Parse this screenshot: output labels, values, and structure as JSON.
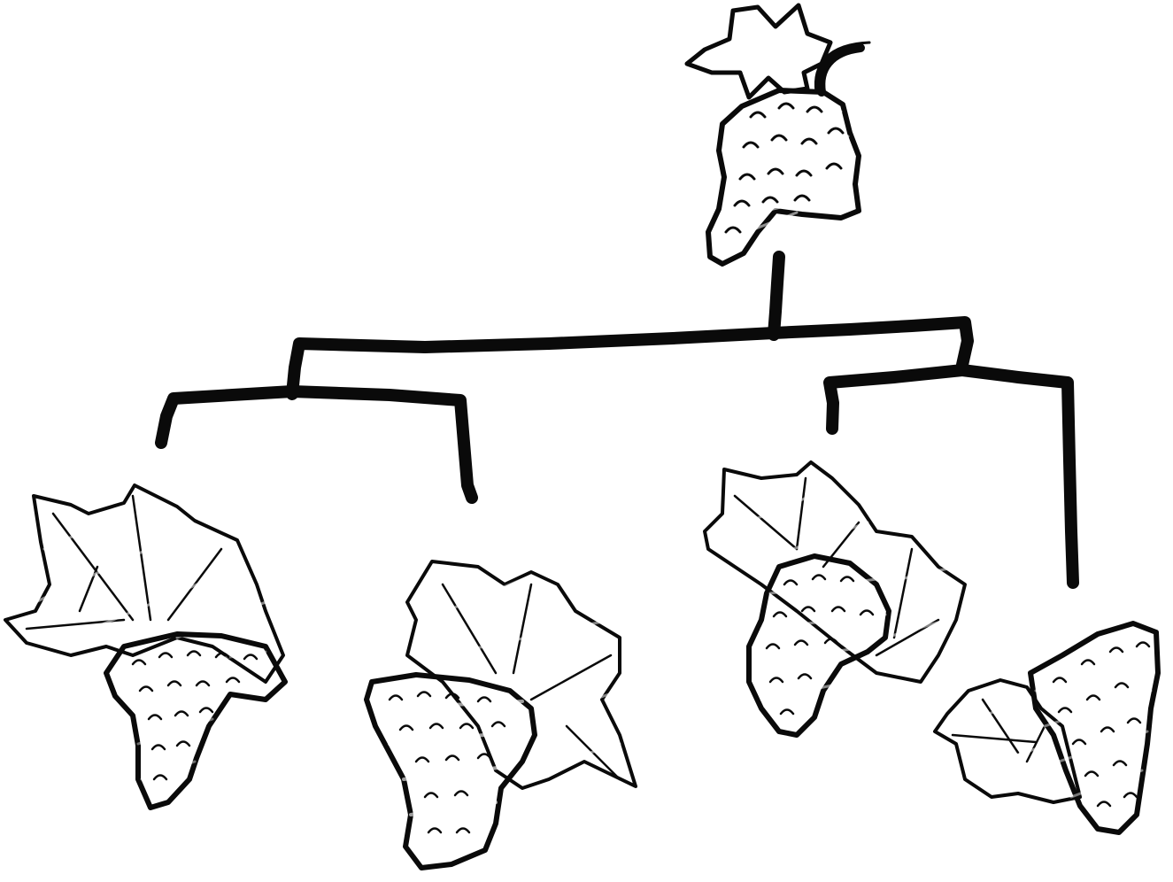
{
  "diagram": {
    "kind": "tree",
    "colors": {
      "ink": "#0a0a0a",
      "background": "#ffffff",
      "root_grape": "#8e3fd0",
      "root_leaf": "#2ecb45",
      "leaf1_grape": "#5a3a8c",
      "leaf1_leaf": "#6b8a48",
      "leaf2_grape": "#4a62a6",
      "leaf2_leaf": "#3a8a34",
      "leaf3_grape": "#a5ad4c",
      "leaf3_leaf": "#6f8f2a",
      "leaf4_grape": "#a89a3c",
      "leaf4_leaf": "#6c9a48"
    },
    "nodes": [
      {
        "id": "root",
        "icon": "purple-grape-bunch-icon"
      },
      {
        "id": "leaf-1",
        "icon": "dark-purple-grape-bunch-icon"
      },
      {
        "id": "leaf-2",
        "icon": "blue-grape-bunch-icon"
      },
      {
        "id": "leaf-3",
        "icon": "yellow-green-grape-bunch-icon"
      },
      {
        "id": "leaf-4",
        "icon": "golden-grape-bunch-icon"
      }
    ]
  }
}
